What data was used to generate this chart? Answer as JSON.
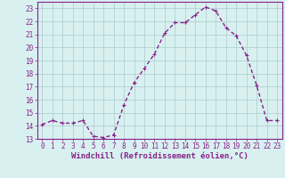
{
  "x": [
    0,
    1,
    2,
    3,
    4,
    5,
    6,
    7,
    8,
    9,
    10,
    11,
    12,
    13,
    14,
    15,
    16,
    17,
    18,
    19,
    20,
    21,
    22,
    23
  ],
  "y": [
    14.1,
    14.4,
    14.2,
    14.2,
    14.4,
    13.2,
    13.1,
    13.3,
    15.6,
    17.3,
    18.4,
    19.5,
    21.1,
    21.9,
    21.9,
    22.5,
    23.1,
    22.8,
    21.5,
    20.9,
    19.4,
    17.1,
    14.4,
    14.4
  ],
  "line_color": "#882288",
  "marker": "+",
  "marker_size": 3,
  "linewidth": 1.0,
  "bg_color": "#d8f0f0",
  "grid_color": "#aacccc",
  "xlabel": "Windchill (Refroidissement éolien,°C)",
  "xlabel_color": "#882288",
  "xlabel_fontsize": 6.5,
  "tick_color": "#882288",
  "tick_fontsize": 5.5,
  "ylim": [
    13,
    23.5
  ],
  "xlim": [
    -0.5,
    23.5
  ],
  "yticks": [
    13,
    14,
    15,
    16,
    17,
    18,
    19,
    20,
    21,
    22,
    23
  ],
  "xticks": [
    0,
    1,
    2,
    3,
    4,
    5,
    6,
    7,
    8,
    9,
    10,
    11,
    12,
    13,
    14,
    15,
    16,
    17,
    18,
    19,
    20,
    21,
    22,
    23
  ]
}
